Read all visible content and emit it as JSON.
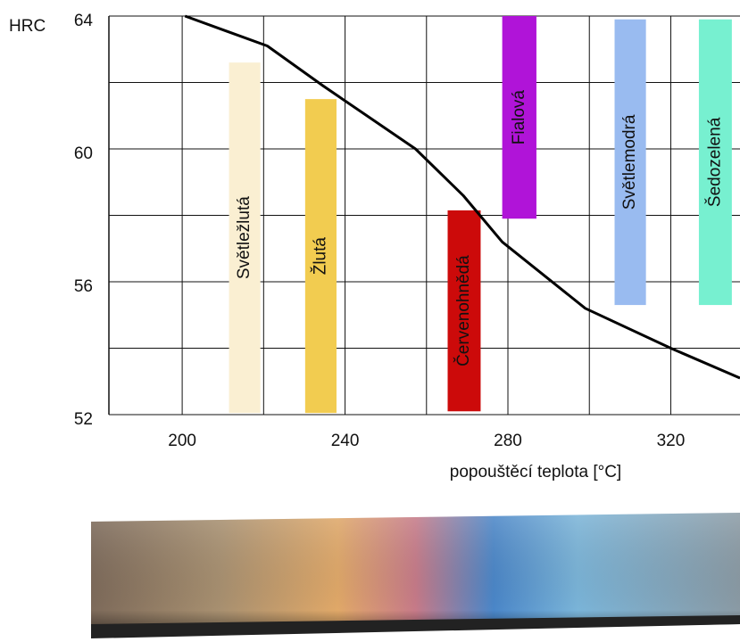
{
  "chart_data": {
    "type": "range-bar-curve",
    "y_label": "HRC",
    "x_label": "popouštěcí teplota [°C]",
    "xlim": [
      182,
      337
    ],
    "ylim": [
      52,
      64
    ],
    "xticks": [
      200,
      240,
      280,
      320
    ],
    "yticks": [
      52,
      56,
      60,
      64
    ],
    "xgrid": [
      200,
      220,
      240,
      260,
      280,
      300,
      320
    ],
    "ygrid": [
      52,
      54,
      56,
      58,
      60,
      62,
      64
    ],
    "grid": true,
    "curve": {
      "color": "#000000",
      "x": [
        200.7,
        220.9,
        234.6,
        257.3,
        269,
        278.6,
        299,
        320,
        337
      ],
      "values": [
        64,
        63.1,
        61.9,
        60.0,
        58.6,
        57.2,
        55.2,
        54.0,
        53.1
      ]
    },
    "bars": [
      {
        "name": "Světležlutá",
        "color": "#faefd2",
        "x": [
          211.5,
          219.2
        ],
        "values": [
          52.05,
          62.6
        ]
      },
      {
        "name": "Žlutá",
        "color": "#f2cc50",
        "x": [
          230.2,
          237.9
        ],
        "values": [
          52.05,
          61.5
        ]
      },
      {
        "name": "Červenohnědá",
        "color": "#cc0a0a",
        "x": [
          265.2,
          273.3
        ],
        "values": [
          52.1,
          58.15
        ]
      },
      {
        "name": "Fialová",
        "color": "#b014d8",
        "x": [
          278.6,
          287
        ],
        "values": [
          57.9,
          64
        ]
      },
      {
        "name": "Světlemodrá",
        "color": "#99bbf0",
        "x": [
          306.2,
          313.9
        ],
        "values": [
          55.3,
          63.9
        ]
      },
      {
        "name": "Šedozelená",
        "color": "#77f0d0",
        "x": [
          326.9,
          335
        ],
        "values": [
          55.3,
          63.9
        ]
      }
    ]
  }
}
